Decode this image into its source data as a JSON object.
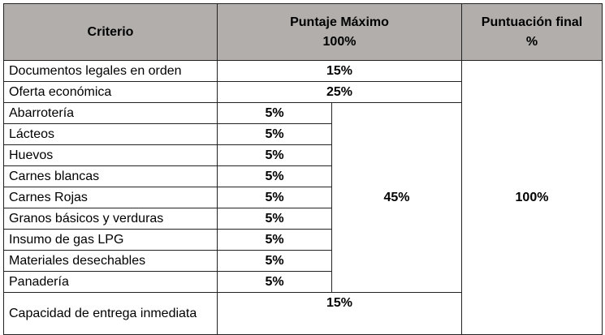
{
  "header": {
    "criterio": "Criterio",
    "puntaje_title": "Puntaje Máximo",
    "puntaje_total": "100%",
    "final_title": "Puntuación final",
    "final_unit": "%"
  },
  "rows": [
    {
      "criterio": "Documentos legales en orden",
      "puntaje": "15%"
    },
    {
      "criterio": "Oferta económica",
      "puntaje": "25%"
    }
  ],
  "group": {
    "total": "45%",
    "items": [
      {
        "criterio": "Abarrotería",
        "puntaje": "5%"
      },
      {
        "criterio": "Lácteos",
        "puntaje": "5%"
      },
      {
        "criterio": "Huevos",
        "puntaje": "5%"
      },
      {
        "criterio": "Carnes blancas",
        "puntaje": "5%"
      },
      {
        "criterio": "Carnes Rojas",
        "puntaje": "5%"
      },
      {
        "criterio": "Granos básicos y verduras",
        "puntaje": "5%"
      },
      {
        "criterio": "Insumo de gas LPG",
        "puntaje": "5%"
      },
      {
        "criterio": "Materiales desechables",
        "puntaje": "5%"
      },
      {
        "criterio": "Panadería",
        "puntaje": "5%"
      }
    ]
  },
  "last_row": {
    "criterio": "Capacidad de entrega inmediata",
    "puntaje": "15%"
  },
  "final_total": "100%",
  "colors": {
    "header_bg": "#b1aeab",
    "border": "#222222"
  }
}
